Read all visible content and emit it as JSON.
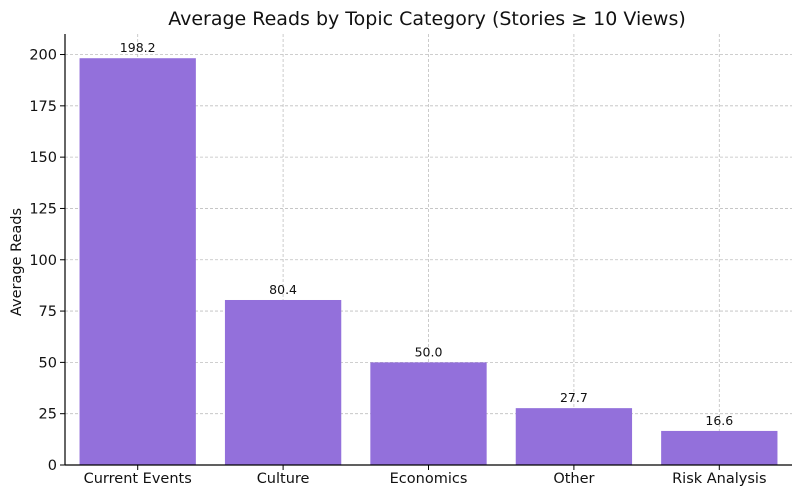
{
  "chart_data": {
    "type": "bar",
    "title": "Average Reads by Topic Category (Stories ≥ 10 Views)",
    "xlabel": "",
    "ylabel": "Average Reads",
    "categories": [
      "Current Events",
      "Culture",
      "Economics",
      "Other",
      "Risk Analysis"
    ],
    "values": [
      198.2,
      80.4,
      50.0,
      27.7,
      16.6
    ],
    "value_labels": [
      "198.2",
      "80.4",
      "50.0",
      "27.7",
      "16.6"
    ],
    "ylim": [
      0,
      210
    ],
    "yticks": [
      0,
      25,
      50,
      75,
      100,
      125,
      150,
      175,
      200
    ],
    "grid": true,
    "bar_color": "#9370DB"
  }
}
